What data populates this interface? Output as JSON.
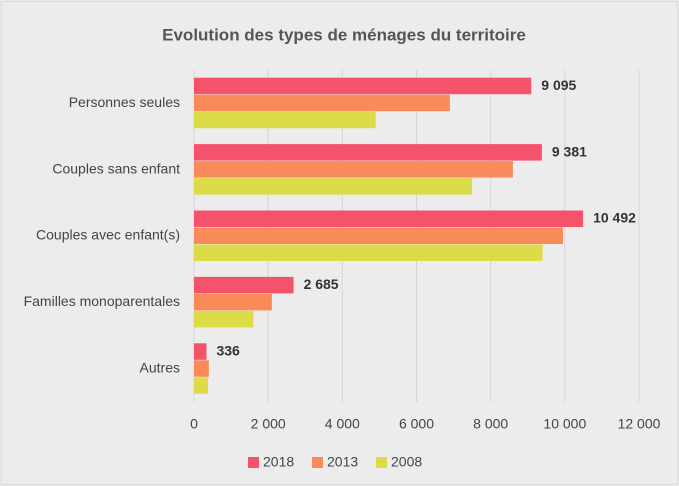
{
  "chart_data": {
    "type": "bar",
    "orientation": "horizontal",
    "title": "Evolution des types de ménages du territoire",
    "categories": [
      "Personnes seules",
      "Couples sans enfant",
      "Couples avec enfant(s)",
      "Familles monoparentales",
      "Autres"
    ],
    "series": [
      {
        "name": "2018",
        "color": "#f5536b",
        "values": [
          9095,
          9381,
          10492,
          2685,
          336
        ],
        "value_labels": [
          "9 095",
          "9 381",
          "10 492",
          "2 685",
          "336"
        ]
      },
      {
        "name": "2013",
        "color": "#f98b5b",
        "values": [
          6900,
          8600,
          9950,
          2100,
          400
        ]
      },
      {
        "name": "2008",
        "color": "#dcdc48",
        "values": [
          4900,
          7500,
          9400,
          1600,
          380
        ]
      }
    ],
    "xlim": [
      0,
      12000
    ],
    "xticks": [
      0,
      {
        "value": 2000,
        "label": "2 000"
      },
      {
        "value": 4000,
        "label": "4 000"
      },
      {
        "value": 6000,
        "label": "6 000"
      },
      {
        "value": 8000,
        "label": "8 000"
      },
      {
        "value": 10000,
        "label": "10 000"
      },
      {
        "value": 12000,
        "label": "12 000"
      }
    ],
    "grid": true,
    "legend": "bottom"
  }
}
